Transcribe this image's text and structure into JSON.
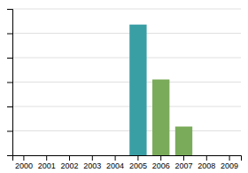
{
  "chart_data": {
    "type": "bar",
    "categories": [
      "2000",
      "2001",
      "2002",
      "2003",
      "2004",
      "2005",
      "2006",
      "2007",
      "2008",
      "2009"
    ],
    "values": [
      0,
      0,
      0,
      0,
      0,
      100,
      58,
      22,
      0,
      0
    ],
    "colors": [
      "#3a9ea5",
      "#3a9ea5",
      "#3a9ea5",
      "#3a9ea5",
      "#3a9ea5",
      "#3a9ea5",
      "#7aab5a",
      "#7aab5a",
      "#3a9ea5",
      "#3a9ea5"
    ],
    "ylim": [
      0,
      112
    ],
    "yticks": [
      18.666666666666668,
      37.333333333333336,
      56,
      74.66666666666667,
      93.33333333333333,
      112
    ],
    "grid": true,
    "tick_labels": "x"
  }
}
